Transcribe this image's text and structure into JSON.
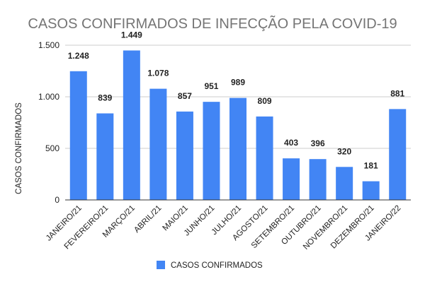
{
  "chart_data": {
    "type": "bar",
    "title": "CASOS CONFIRMADOS DE INFECÇÃO PELA COVID-19",
    "xlabel": "",
    "ylabel": "CASOS CONFIRMADOS",
    "ylim": [
      0,
      1500
    ],
    "yticks": [
      0,
      500,
      1000,
      1500
    ],
    "ytick_labels": [
      "0",
      "500",
      "1.000",
      "1.500"
    ],
    "grid": true,
    "legend_position": "bottom",
    "categories": [
      "JANEIRO/21",
      "FEVEREIRO/21",
      "MARÇO/21",
      "ABRIL/21",
      "MAIO/21",
      "JUNHO/21",
      "JULHO/21",
      "AGOSTO/21",
      "SETEMBRO/21",
      "OUTUBRO/21",
      "NOVEMBRO/21",
      "DEZEMBRO/21",
      "JANEIRO/22"
    ],
    "series": [
      {
        "name": "CASOS CONFIRMADOS",
        "color": "#4285f4",
        "values": [
          1248,
          839,
          1449,
          1078,
          857,
          951,
          989,
          809,
          403,
          396,
          320,
          181,
          881
        ],
        "labels": [
          "1.248",
          "839",
          "1.449",
          "1.078",
          "857",
          "951",
          "989",
          "809",
          "403",
          "396",
          "320",
          "181",
          "881"
        ]
      }
    ]
  }
}
